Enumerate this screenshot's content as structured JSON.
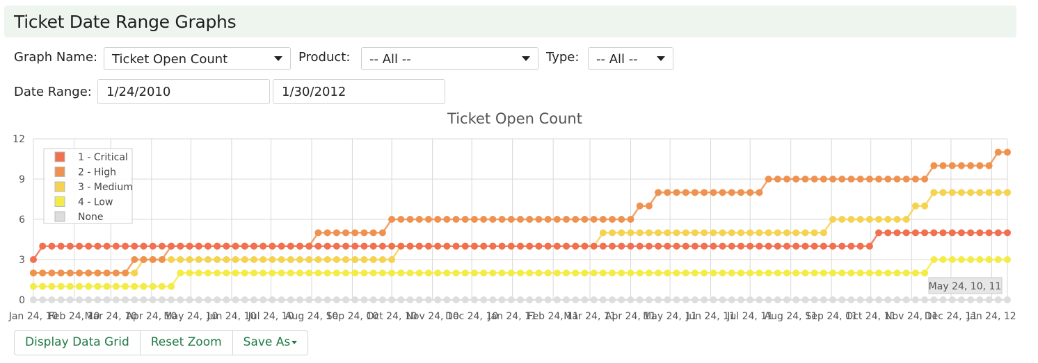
{
  "page": {
    "title": "Ticket Date Range Graphs"
  },
  "filters": {
    "graph_name_label": "Graph Name:",
    "graph_name_value": "Ticket Open Count",
    "product_label": "Product:",
    "product_value": "-- All --",
    "type_label": "Type:",
    "type_value": "-- All --",
    "date_range_label": "Date Range:",
    "date_start": "1/24/2010",
    "date_end": "1/30/2012"
  },
  "buttons": {
    "display_grid": "Display Data Grid",
    "reset_zoom": "Reset Zoom",
    "save_as": "Save As"
  },
  "tooltip": {
    "text": "May 24, 10, 11"
  },
  "chart_data": {
    "type": "line",
    "title": "Ticket Open Count",
    "xlabel": "",
    "ylabel": "",
    "ylim": [
      0,
      12
    ],
    "yticks": [
      0,
      3,
      6,
      9,
      12
    ],
    "xlim": [
      0,
      106
    ],
    "x_ticks": [
      {
        "pos": 0,
        "label": "Jan 24, 10"
      },
      {
        "pos": 4.43,
        "label": "Feb 24, 10"
      },
      {
        "pos": 8.43,
        "label": "Mar 24, 10"
      },
      {
        "pos": 12.86,
        "label": "Apr 24, 10"
      },
      {
        "pos": 17.14,
        "label": "May 24, 10"
      },
      {
        "pos": 21.57,
        "label": "Jun 24, 10"
      },
      {
        "pos": 25.86,
        "label": "Jul 24, 10"
      },
      {
        "pos": 30.29,
        "label": "Aug 24, 10"
      },
      {
        "pos": 34.71,
        "label": "Sep 24, 10"
      },
      {
        "pos": 39.0,
        "label": "Oct 24, 10"
      },
      {
        "pos": 43.43,
        "label": "Nov 24, 10"
      },
      {
        "pos": 47.71,
        "label": "Dec 24, 10"
      },
      {
        "pos": 52.14,
        "label": "Jan 24, 11"
      },
      {
        "pos": 56.57,
        "label": "Feb 24, 11"
      },
      {
        "pos": 60.57,
        "label": "Mar 24, 11"
      },
      {
        "pos": 65.0,
        "label": "Apr 24, 11"
      },
      {
        "pos": 69.29,
        "label": "May 24, 11"
      },
      {
        "pos": 73.71,
        "label": "Jun 24, 11"
      },
      {
        "pos": 78.0,
        "label": "Jul 24, 11"
      },
      {
        "pos": 82.43,
        "label": "Aug 24, 11"
      },
      {
        "pos": 86.86,
        "label": "Sep 24, 11"
      },
      {
        "pos": 91.14,
        "label": "Oct 24, 11"
      },
      {
        "pos": 95.57,
        "label": "Nov 24, 11"
      },
      {
        "pos": 99.86,
        "label": "Dec 24, 11"
      },
      {
        "pos": 104.29,
        "label": "Jan 24, 12"
      }
    ],
    "grid": true,
    "legend_position": "top-left",
    "series": [
      {
        "name": "1 - Critical",
        "color": "#f0704f",
        "steps": [
          [
            0,
            3
          ],
          [
            1,
            4
          ],
          [
            61,
            4
          ],
          [
            62,
            4
          ],
          [
            92,
            5
          ],
          [
            106,
            5
          ]
        ]
      },
      {
        "name": "2 - High",
        "color": "#f0924f",
        "steps": [
          [
            0,
            2
          ],
          [
            11,
            3
          ],
          [
            15,
            4
          ],
          [
            31,
            5
          ],
          [
            39,
            6
          ],
          [
            66,
            7
          ],
          [
            68,
            8
          ],
          [
            78,
            8
          ],
          [
            80,
            9
          ],
          [
            98,
            10
          ],
          [
            105,
            11
          ]
        ]
      },
      {
        "name": "3 - Medium",
        "color": "#f5d250",
        "steps": [
          [
            0,
            2
          ],
          [
            11,
            2
          ],
          [
            12,
            3
          ],
          [
            39,
            3
          ],
          [
            40,
            4
          ],
          [
            62,
            5
          ],
          [
            87,
            6
          ],
          [
            96,
            7
          ],
          [
            98,
            8
          ]
        ]
      },
      {
        "name": "4 - Low",
        "color": "#f3ec48",
        "steps": [
          [
            0,
            1
          ],
          [
            15,
            1
          ],
          [
            16,
            2
          ],
          [
            97,
            2
          ],
          [
            98,
            3
          ]
        ]
      },
      {
        "name": "None",
        "color": "#dddddd",
        "steps": [
          [
            0,
            0
          ]
        ]
      }
    ]
  }
}
